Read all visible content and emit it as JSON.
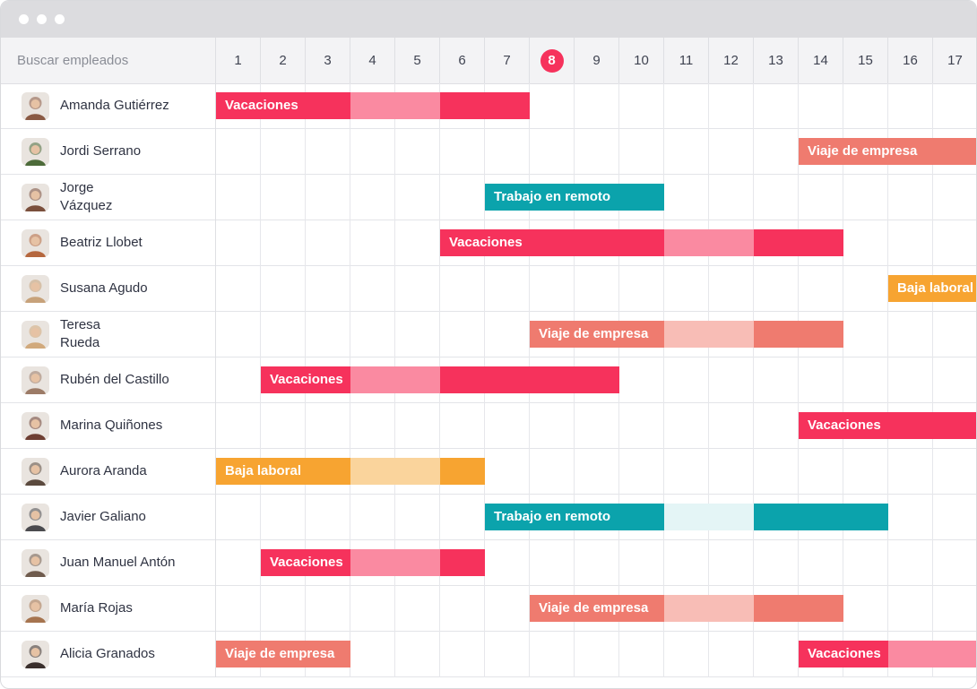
{
  "search": {
    "placeholder": "Buscar empleados"
  },
  "days": [
    "1",
    "2",
    "3",
    "4",
    "5",
    "6",
    "7",
    "8",
    "9",
    "10",
    "11",
    "12",
    "13",
    "14",
    "15",
    "16",
    "17"
  ],
  "today": "8",
  "colors": {
    "vacaciones": "#f6325c",
    "vacaciones_light": "#fa8aa1",
    "viaje": "#ef7b6f",
    "viaje_light": "#f8bdb6",
    "remoto": "#0ba3ac",
    "remoto_light": "#e4f5f6",
    "baja": "#f7a431",
    "baja_light": "#fad49c"
  },
  "employees": [
    {
      "name": "Amanda Gutiérrez",
      "avatar": "#8a5a44",
      "bars": [
        {
          "label": "Vacaciones",
          "type": "vacaciones",
          "segments": [
            [
              1,
              3,
              "d"
            ],
            [
              4,
              5,
              "l"
            ],
            [
              6,
              7,
              "d"
            ]
          ]
        }
      ]
    },
    {
      "name": "Jordi Serrano",
      "avatar": "#4d6b3a",
      "bars": [
        {
          "label": "Viaje de empresa",
          "type": "viaje",
          "segments": [
            [
              14,
              17,
              "d"
            ]
          ]
        }
      ]
    },
    {
      "name": "Jorge\nVázquez",
      "avatar": "#7a4f3c",
      "bars": [
        {
          "label": "Trabajo en remoto",
          "type": "remoto",
          "segments": [
            [
              7,
              10,
              "d"
            ]
          ]
        }
      ]
    },
    {
      "name": "Beatriz Llobet",
      "avatar": "#b5673e",
      "bars": [
        {
          "label": "Vacaciones",
          "type": "vacaciones",
          "segments": [
            [
              6,
              10,
              "d"
            ],
            [
              11,
              12,
              "l"
            ],
            [
              13,
              14,
              "d"
            ]
          ]
        }
      ]
    },
    {
      "name": "Susana Agudo",
      "avatar": "#c7a27a",
      "bars": [
        {
          "label": "Baja laboral",
          "type": "baja",
          "segments": [
            [
              16,
              17,
              "d"
            ]
          ]
        }
      ]
    },
    {
      "name": "Teresa\nRueda",
      "avatar": "#d1a97c",
      "bars": [
        {
          "label": "Viaje de empresa",
          "type": "viaje",
          "segments": [
            [
              8,
              10,
              "d"
            ],
            [
              11,
              12,
              "l"
            ],
            [
              13,
              14,
              "d"
            ]
          ]
        }
      ]
    },
    {
      "name": "Rubén del Castillo",
      "avatar": "#9c7b67",
      "bars": [
        {
          "label": "Vacaciones",
          "type": "vacaciones",
          "segments": [
            [
              2,
              3,
              "d"
            ],
            [
              4,
              5,
              "l"
            ],
            [
              6,
              9,
              "d"
            ]
          ]
        }
      ]
    },
    {
      "name": "Marina Quiñones",
      "avatar": "#6e3f33",
      "bars": [
        {
          "label": "Vacaciones",
          "type": "vacaciones",
          "segments": [
            [
              14,
              17,
              "d"
            ]
          ]
        }
      ]
    },
    {
      "name": "Aurora Aranda",
      "avatar": "#5b4a3e",
      "bars": [
        {
          "label": "Baja laboral",
          "type": "baja",
          "segments": [
            [
              1,
              3,
              "d"
            ],
            [
              4,
              5,
              "l"
            ],
            [
              6,
              6,
              "d"
            ]
          ]
        }
      ]
    },
    {
      "name": "Javier Galiano",
      "avatar": "#4a4a4e",
      "bars": [
        {
          "label": "Trabajo en remoto",
          "type": "remoto",
          "segments": [
            [
              7,
              10,
              "d"
            ],
            [
              11,
              12,
              "l"
            ],
            [
              13,
              15,
              "d"
            ]
          ]
        }
      ]
    },
    {
      "name": "Juan Manuel Antón",
      "avatar": "#6f5b4d",
      "bars": [
        {
          "label": "Vacaciones",
          "type": "vacaciones",
          "segments": [
            [
              2,
              3,
              "d"
            ],
            [
              4,
              5,
              "l"
            ],
            [
              6,
              6,
              "d"
            ]
          ]
        }
      ]
    },
    {
      "name": "María Rojas",
      "avatar": "#a6744f",
      "bars": [
        {
          "label": "Viaje de empresa",
          "type": "viaje",
          "segments": [
            [
              8,
              10,
              "d"
            ],
            [
              11,
              12,
              "l"
            ],
            [
              13,
              14,
              "d"
            ]
          ]
        }
      ]
    },
    {
      "name": "Alicia Granados",
      "avatar": "#3a2f2c",
      "bars": [
        {
          "label": "Viaje de empresa",
          "type": "viaje",
          "segments": [
            [
              1,
              3,
              "d"
            ]
          ]
        },
        {
          "label": "Vacaciones",
          "type": "vacaciones",
          "segments": [
            [
              14,
              15,
              "d"
            ],
            [
              16,
              17,
              "l"
            ]
          ]
        }
      ]
    }
  ]
}
